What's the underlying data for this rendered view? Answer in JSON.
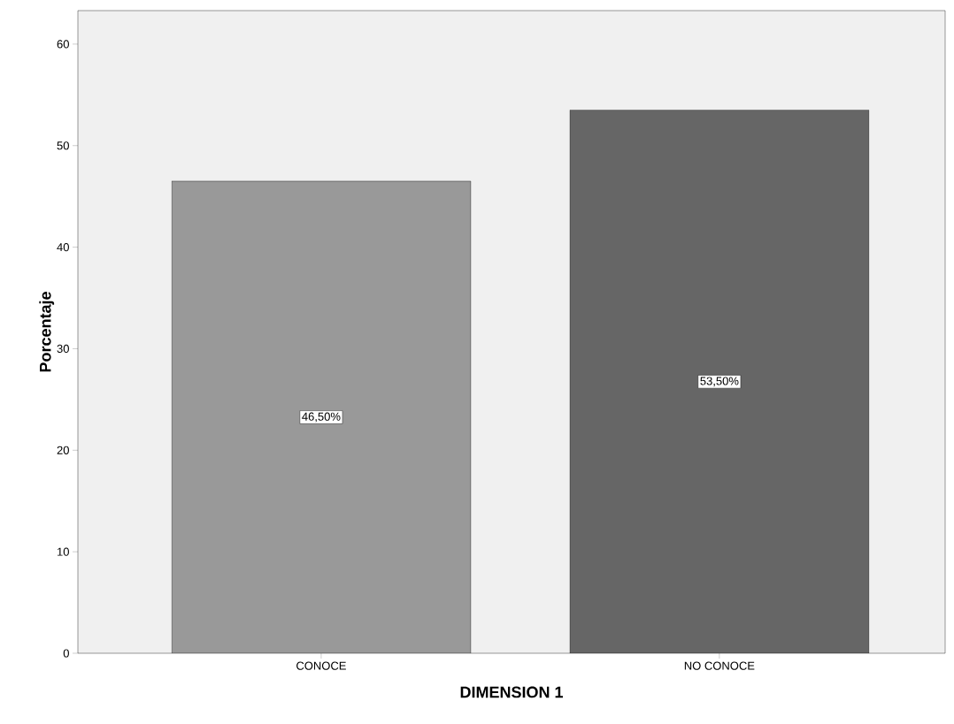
{
  "chart_data": {
    "type": "bar",
    "xlabel": "DIMENSION 1",
    "ylabel": "Porcentaje",
    "categories": [
      "CONOCE",
      "NO CONOCE"
    ],
    "values": [
      46.5,
      53.5
    ],
    "colors": [
      "#999999",
      "#666666"
    ],
    "value_labels": [
      "46,50%",
      "53,50%"
    ],
    "ylim": [
      0,
      63.3
    ],
    "yticks": [
      0,
      10,
      20,
      30,
      40,
      50,
      60
    ]
  }
}
